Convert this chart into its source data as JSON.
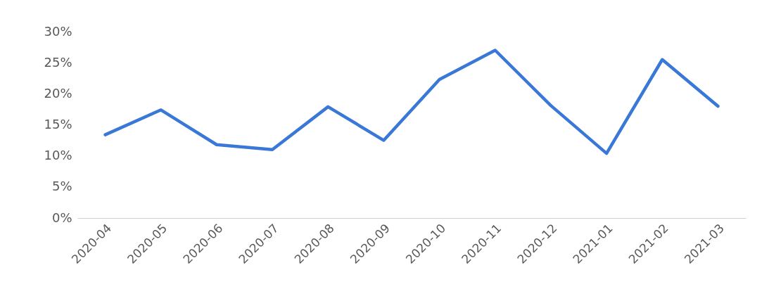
{
  "chart_data": {
    "type": "line",
    "categories": [
      "2020-04",
      "2020-05",
      "2020-06",
      "2020-07",
      "2020-08",
      "2020-09",
      "2020-10",
      "2020-11",
      "2020-12",
      "2021-01",
      "2021-02",
      "2021-03"
    ],
    "series": [
      {
        "color": "#3a78d8",
        "values": [
          13.4,
          17.4,
          11.8,
          11.0,
          17.9,
          12.5,
          22.3,
          27.0,
          18.1,
          10.4,
          25.5,
          18.0
        ]
      }
    ],
    "ylim": [
      0,
      30
    ],
    "yticks": [
      {
        "value": 0,
        "label": "0%"
      },
      {
        "value": 5,
        "label": "5%"
      },
      {
        "value": 10,
        "label": "10%"
      },
      {
        "value": 15,
        "label": "15%"
      },
      {
        "value": 20,
        "label": "20%"
      },
      {
        "value": 25,
        "label": "25%"
      },
      {
        "value": 30,
        "label": "30%"
      }
    ],
    "grid": false,
    "legend": false,
    "marker": "none",
    "line_style": "solid"
  }
}
